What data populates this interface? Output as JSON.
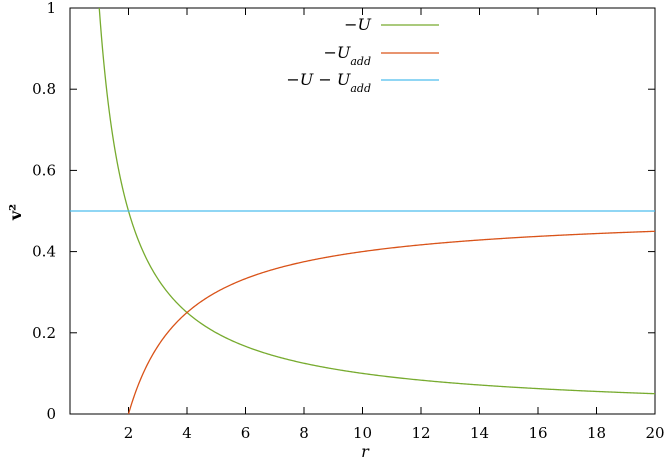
{
  "chart_data": {
    "type": "line",
    "xlabel": "r",
    "ylabel": "v²",
    "xlim": [
      0,
      20
    ],
    "ylim": [
      0,
      1
    ],
    "x_ticks": [
      2,
      4,
      6,
      8,
      10,
      12,
      14,
      16,
      18,
      20
    ],
    "y_ticks": [
      0,
      0.2,
      0.4,
      0.6,
      0.8,
      1
    ],
    "x_tick_labels": [
      "2",
      "4",
      "6",
      "8",
      "10",
      "12",
      "14",
      "16",
      "18",
      "20"
    ],
    "y_tick_labels": [
      "0",
      "0.2",
      "0.4",
      "0.6",
      "0.8",
      "1"
    ],
    "grid": false,
    "legend_position": "top-center",
    "series": [
      {
        "name": "−U",
        "color": "#77ab2f",
        "x": [
          1,
          1.2,
          1.5,
          2,
          2.5,
          3,
          4,
          5,
          6,
          8,
          10,
          12,
          14,
          16,
          18,
          20
        ],
        "y": [
          1,
          0.833,
          0.667,
          0.5,
          0.4,
          0.333,
          0.25,
          0.2,
          0.167,
          0.125,
          0.1,
          0.083,
          0.071,
          0.063,
          0.056,
          0.05
        ]
      },
      {
        "name": "−U_add",
        "color": "#d95319",
        "x": [
          2,
          2.5,
          3,
          4,
          5,
          6,
          8,
          10,
          12,
          14,
          16,
          18,
          20
        ],
        "y": [
          0,
          0.1,
          0.167,
          0.25,
          0.3,
          0.333,
          0.375,
          0.4,
          0.417,
          0.429,
          0.438,
          0.444,
          0.45
        ]
      },
      {
        "name": "−U − U_add",
        "color": "#4dbeee",
        "x": [
          0,
          20
        ],
        "y": [
          0.5,
          0.5
        ]
      }
    ]
  }
}
